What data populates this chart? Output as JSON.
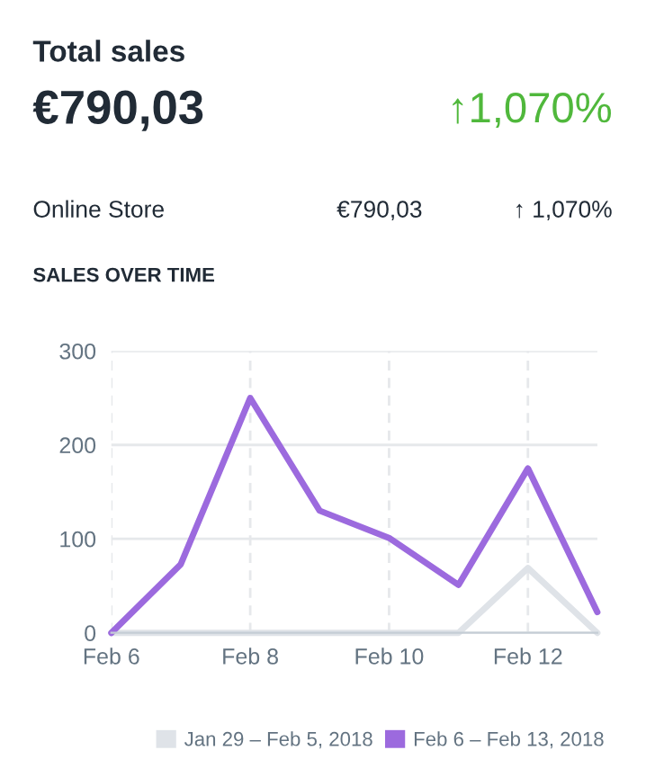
{
  "chart_data": {
    "type": "line",
    "title": "Total sales",
    "subtitle": "SALES OVER TIME",
    "annotations": [
      "€790,03",
      "↑1,070%",
      "Online Store",
      "€790,03",
      "↑ 1,070%"
    ],
    "categories": [
      "Feb 6",
      null,
      "Feb 8",
      null,
      "Feb 10",
      null,
      "Feb 12",
      null
    ],
    "series": [
      {
        "name": "Jan 29 – Feb 5, 2018",
        "color": "#dfe3e8",
        "values": [
          0,
          0,
          0,
          0,
          0,
          0,
          69,
          0
        ]
      },
      {
        "name": "Feb 6 – Feb 13, 2018",
        "color": "#9c6ade",
        "values": [
          0,
          73,
          250,
          130,
          101,
          51,
          175,
          22
        ]
      }
    ],
    "ylim": [
      0,
      300
    ],
    "yticks": [
      0,
      100,
      200,
      300
    ],
    "grid": true,
    "legend": "bottom",
    "marker": "none",
    "line_style": "solid"
  }
}
